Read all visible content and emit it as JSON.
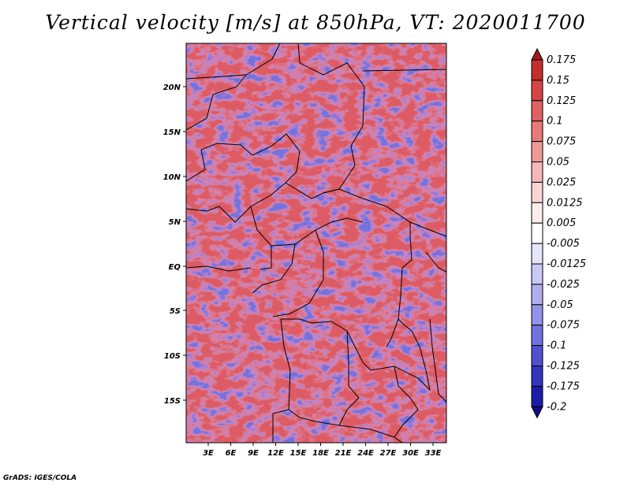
{
  "title": "Vertical velocity [m/s] at 850hPa, VT: 2020011700",
  "footer": "GrADS: IGES/COLA",
  "map": {
    "lat_labels": [
      "20N",
      "15N",
      "10N",
      "5N",
      "EQ",
      "5S",
      "10S",
      "15S"
    ],
    "lon_labels": [
      "3E",
      "6E",
      "9E",
      "12E",
      "15E",
      "18E",
      "21E",
      "24E",
      "27E",
      "30E",
      "33E"
    ]
  },
  "colorbar": {
    "labels": [
      "0.175",
      "0.15",
      "0.125",
      "0.1",
      "0.075",
      "0.05",
      "0.025",
      "0.0125",
      "0.005",
      "-0.005",
      "-0.0125",
      "-0.025",
      "-0.05",
      "-0.075",
      "-0.1",
      "-0.125",
      "-0.175",
      "-0.2"
    ],
    "colors": [
      "#a51a1a",
      "#c42e2e",
      "#d54545",
      "#e06060",
      "#e87a7a",
      "#ef9898",
      "#f5b7b7",
      "#fad4d4",
      "#fdeeee",
      "#ffffff",
      "#e4e4fb",
      "#c9c9f6",
      "#aeaef0",
      "#9292ea",
      "#7272de",
      "#5151cf",
      "#3434bd",
      "#1c1ca8",
      "#0e0e8a"
    ]
  }
}
